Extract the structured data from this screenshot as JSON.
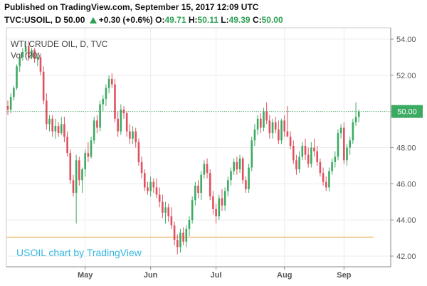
{
  "header": {
    "published": "Published on TradingView.com, September 15, 2017 12:09 UTC",
    "symbol_interval": "TVC:USOIL, D",
    "last": "50.00",
    "change": "+0.30 (+0.6%)",
    "open_label": "O:",
    "open": "49.71",
    "high_label": "H:",
    "high": "50.11",
    "low_label": "L:",
    "low": "49.39",
    "close_label": "C:",
    "close": "50.00"
  },
  "chart_data": {
    "type": "candlestick",
    "title": "WTI CRUDE OIL, D, TVC",
    "subtitle": "Vol (20)",
    "watermark": "USOIL chart by TradingView",
    "last_price_label": "50.00",
    "ylim": [
      41.5,
      54.6
    ],
    "yticks": [
      "54.00",
      "52.00",
      "50.00",
      "48.00",
      "46.00",
      "44.00",
      "42.00"
    ],
    "ytick_values": [
      54,
      52,
      50,
      48,
      46,
      44,
      42
    ],
    "xticks": [
      "May",
      "Jun",
      "Jul",
      "Aug",
      "Sep"
    ],
    "xtick_index": [
      26,
      48,
      70,
      93,
      113
    ],
    "grid": true,
    "colors": {
      "up": "#3cab62",
      "down": "#e0515f",
      "last_line": "#3cab62",
      "hline": "#f0b060",
      "watermark": "#38b8e0",
      "axis": "#888888"
    },
    "horizontal_line": 43.05,
    "candles": [
      [
        50.3,
        50.6,
        49.8,
        50.1
      ],
      [
        50.1,
        51.0,
        49.9,
        50.8
      ],
      [
        50.8,
        51.4,
        50.6,
        51.3
      ],
      [
        51.3,
        52.6,
        51.2,
        52.5
      ],
      [
        52.5,
        53.2,
        52.2,
        53.0
      ],
      [
        53.0,
        53.5,
        52.8,
        53.3
      ],
      [
        53.3,
        53.9,
        53.0,
        53.6
      ],
      [
        53.6,
        53.9,
        52.8,
        53.0
      ],
      [
        53.0,
        53.5,
        52.9,
        53.4
      ],
      [
        53.4,
        53.5,
        52.7,
        52.9
      ],
      [
        52.9,
        53.2,
        52.5,
        53.0
      ],
      [
        53.0,
        53.2,
        52.0,
        52.2
      ],
      [
        52.2,
        52.5,
        50.4,
        50.6
      ],
      [
        50.6,
        51.0,
        49.0,
        49.3
      ],
      [
        49.3,
        49.8,
        48.9,
        49.6
      ],
      [
        49.6,
        49.8,
        48.6,
        48.9
      ],
      [
        48.9,
        49.6,
        48.5,
        49.2
      ],
      [
        49.2,
        49.4,
        48.6,
        48.8
      ],
      [
        48.8,
        49.7,
        48.7,
        49.3
      ],
      [
        49.3,
        49.7,
        48.3,
        48.6
      ],
      [
        48.6,
        48.9,
        47.5,
        47.7
      ],
      [
        47.7,
        47.9,
        46.0,
        46.2
      ],
      [
        46.2,
        46.5,
        45.3,
        45.5
      ],
      [
        45.5,
        47.6,
        43.8,
        47.3
      ],
      [
        47.3,
        47.5,
        45.9,
        46.2
      ],
      [
        46.2,
        46.9,
        45.5,
        46.8
      ],
      [
        46.8,
        47.9,
        46.4,
        47.7
      ],
      [
        47.7,
        48.3,
        47.2,
        47.5
      ],
      [
        47.5,
        48.6,
        47.4,
        48.4
      ],
      [
        48.4,
        49.7,
        48.2,
        49.5
      ],
      [
        49.5,
        49.8,
        48.8,
        49.1
      ],
      [
        49.1,
        50.6,
        48.9,
        50.4
      ],
      [
        50.4,
        50.9,
        50.0,
        50.7
      ],
      [
        50.7,
        51.5,
        50.3,
        51.3
      ],
      [
        51.3,
        52.0,
        51.0,
        51.8
      ],
      [
        51.8,
        52.1,
        51.3,
        51.5
      ],
      [
        51.5,
        51.8,
        49.4,
        49.6
      ],
      [
        49.6,
        50.0,
        48.6,
        48.9
      ],
      [
        48.9,
        50.4,
        48.7,
        50.1
      ],
      [
        50.1,
        50.3,
        49.6,
        49.9
      ],
      [
        49.9,
        50.0,
        48.6,
        48.9
      ],
      [
        48.9,
        49.3,
        48.2,
        48.5
      ],
      [
        48.5,
        49.2,
        48.2,
        48.9
      ],
      [
        48.9,
        49.1,
        48.0,
        48.3
      ],
      [
        48.3,
        48.5,
        47.0,
        47.2
      ],
      [
        47.2,
        47.5,
        46.3,
        46.6
      ],
      [
        46.6,
        46.8,
        45.6,
        45.8
      ],
      [
        45.8,
        46.1,
        45.4,
        45.6
      ],
      [
        45.6,
        46.4,
        45.3,
        46.1
      ],
      [
        46.1,
        46.3,
        45.5,
        45.8
      ],
      [
        45.8,
        46.3,
        45.2,
        45.4
      ],
      [
        45.4,
        45.8,
        44.7,
        45.0
      ],
      [
        45.0,
        45.4,
        44.1,
        44.4
      ],
      [
        44.4,
        45.0,
        43.8,
        44.7
      ],
      [
        44.7,
        44.9,
        43.9,
        44.2
      ],
      [
        44.2,
        44.7,
        43.5,
        43.7
      ],
      [
        43.7,
        43.9,
        42.6,
        42.9
      ],
      [
        42.9,
        43.2,
        42.1,
        42.5
      ],
      [
        42.5,
        43.5,
        42.2,
        43.3
      ],
      [
        43.3,
        43.6,
        42.6,
        42.8
      ],
      [
        42.8,
        43.7,
        42.5,
        43.5
      ],
      [
        43.5,
        44.2,
        43.1,
        44.0
      ],
      [
        44.0,
        45.3,
        43.8,
        45.1
      ],
      [
        45.1,
        46.1,
        44.8,
        45.9
      ],
      [
        45.9,
        46.2,
        45.2,
        45.5
      ],
      [
        45.5,
        46.7,
        45.1,
        46.5
      ],
      [
        46.5,
        47.3,
        46.3,
        47.1
      ],
      [
        47.1,
        47.4,
        46.3,
        46.6
      ],
      [
        46.6,
        46.8,
        45.1,
        45.3
      ],
      [
        45.3,
        45.6,
        44.3,
        44.6
      ],
      [
        44.6,
        44.9,
        43.8,
        44.2
      ],
      [
        44.2,
        45.4,
        44.0,
        45.2
      ],
      [
        45.2,
        45.7,
        44.5,
        44.8
      ],
      [
        44.8,
        45.8,
        44.5,
        45.6
      ],
      [
        45.6,
        46.4,
        45.3,
        46.2
      ],
      [
        46.2,
        46.9,
        45.9,
        46.7
      ],
      [
        46.7,
        47.4,
        46.5,
        47.2
      ],
      [
        47.2,
        47.5,
        46.5,
        46.8
      ],
      [
        46.8,
        47.6,
        46.6,
        47.4
      ],
      [
        47.4,
        47.5,
        46.0,
        46.2
      ],
      [
        46.2,
        46.4,
        45.5,
        45.7
      ],
      [
        45.7,
        47.1,
        45.5,
        46.9
      ],
      [
        46.9,
        48.6,
        46.7,
        48.4
      ],
      [
        48.4,
        49.3,
        48.1,
        49.0
      ],
      [
        49.0,
        49.8,
        48.7,
        49.6
      ],
      [
        49.6,
        49.9,
        48.8,
        49.1
      ],
      [
        49.1,
        50.2,
        48.9,
        50.0
      ],
      [
        50.0,
        50.5,
        49.3,
        49.5
      ],
      [
        49.5,
        49.8,
        48.5,
        48.8
      ],
      [
        48.8,
        49.6,
        48.5,
        49.4
      ],
      [
        49.4,
        49.7,
        48.8,
        49.0
      ],
      [
        49.0,
        49.5,
        48.2,
        48.4
      ],
      [
        48.4,
        49.6,
        48.2,
        49.5
      ],
      [
        49.5,
        49.8,
        48.6,
        48.9
      ],
      [
        48.9,
        50.3,
        48.7,
        48.6
      ],
      [
        48.6,
        48.9,
        47.9,
        48.1
      ],
      [
        48.1,
        48.4,
        47.1,
        47.3
      ],
      [
        47.3,
        47.6,
        46.5,
        46.8
      ],
      [
        46.8,
        47.8,
        46.6,
        47.5
      ],
      [
        47.5,
        48.3,
        47.3,
        48.1
      ],
      [
        48.1,
        48.5,
        47.3,
        47.6
      ],
      [
        47.6,
        48.0,
        46.9,
        47.1
      ],
      [
        47.1,
        48.3,
        46.9,
        48.0
      ],
      [
        48.0,
        48.5,
        47.5,
        47.8
      ],
      [
        47.8,
        48.1,
        47.0,
        47.2
      ],
      [
        47.2,
        47.4,
        46.4,
        46.6
      ],
      [
        46.6,
        46.9,
        45.9,
        46.1
      ],
      [
        46.1,
        46.4,
        45.6,
        45.8
      ],
      [
        45.8,
        46.9,
        45.6,
        46.7
      ],
      [
        46.7,
        47.4,
        46.5,
        47.2
      ],
      [
        47.2,
        47.8,
        46.9,
        47.5
      ],
      [
        47.5,
        49.0,
        47.3,
        48.8
      ],
      [
        48.8,
        49.3,
        48.5,
        49.1
      ],
      [
        49.1,
        49.4,
        47.1,
        47.3
      ],
      [
        47.3,
        48.2,
        47.0,
        48.0
      ],
      [
        48.0,
        48.6,
        47.6,
        48.4
      ],
      [
        48.4,
        49.6,
        48.2,
        49.4
      ],
      [
        49.4,
        50.5,
        49.2,
        49.7
      ],
      [
        49.7,
        50.1,
        49.4,
        50.0
      ]
    ]
  }
}
